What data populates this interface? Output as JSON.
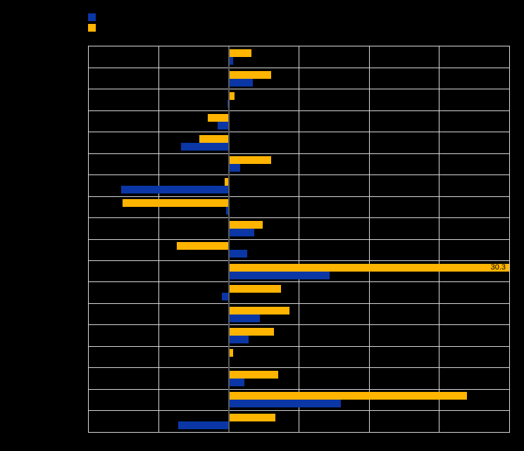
{
  "colors": {
    "background": "#000000",
    "plot_border": "#D9D9D9",
    "gridline": "#D9D9D9",
    "zero_line": "#595959",
    "series_blue": "#0A37A5",
    "series_orange": "#FFB400",
    "data_label_text": "#000000"
  },
  "legend": {
    "position": "top-left",
    "items": [
      {
        "label": "",
        "color": "#0A37A5"
      },
      {
        "label": "",
        "color": "#FFB400"
      }
    ]
  },
  "chart_data": {
    "type": "bar",
    "orientation": "horizontal",
    "title": "",
    "xlabel": "",
    "ylabel": "",
    "xlim": [
      -10,
      20
    ],
    "tick_interval": 5,
    "grid": true,
    "clip_bars_to_axis": true,
    "categories": [
      "",
      "",
      "",
      "",
      "",
      "",
      "",
      "",
      "",
      "",
      "",
      "",
      "",
      "",
      "",
      "",
      "",
      ""
    ],
    "series": [
      {
        "name": "",
        "color": "#FFB400",
        "cluster_position": "top",
        "values": [
          1.6,
          3.0,
          0.4,
          -1.5,
          -2.1,
          3.0,
          -0.3,
          -7.6,
          2.4,
          -3.7,
          30.3,
          3.7,
          4.3,
          3.2,
          0.3,
          3.5,
          17.0,
          3.3
        ]
      },
      {
        "name": "",
        "color": "#0A37A5",
        "cluster_position": "bottom",
        "values": [
          0.3,
          1.7,
          -0.1,
          -0.8,
          -3.4,
          0.8,
          -7.7,
          -0.2,
          1.8,
          1.3,
          7.2,
          -0.5,
          2.2,
          1.4,
          0.0,
          1.1,
          8.0,
          -3.6
        ]
      }
    ],
    "data_labels": [
      {
        "series_index": 0,
        "row_index": 10,
        "text": "30.3"
      }
    ]
  }
}
